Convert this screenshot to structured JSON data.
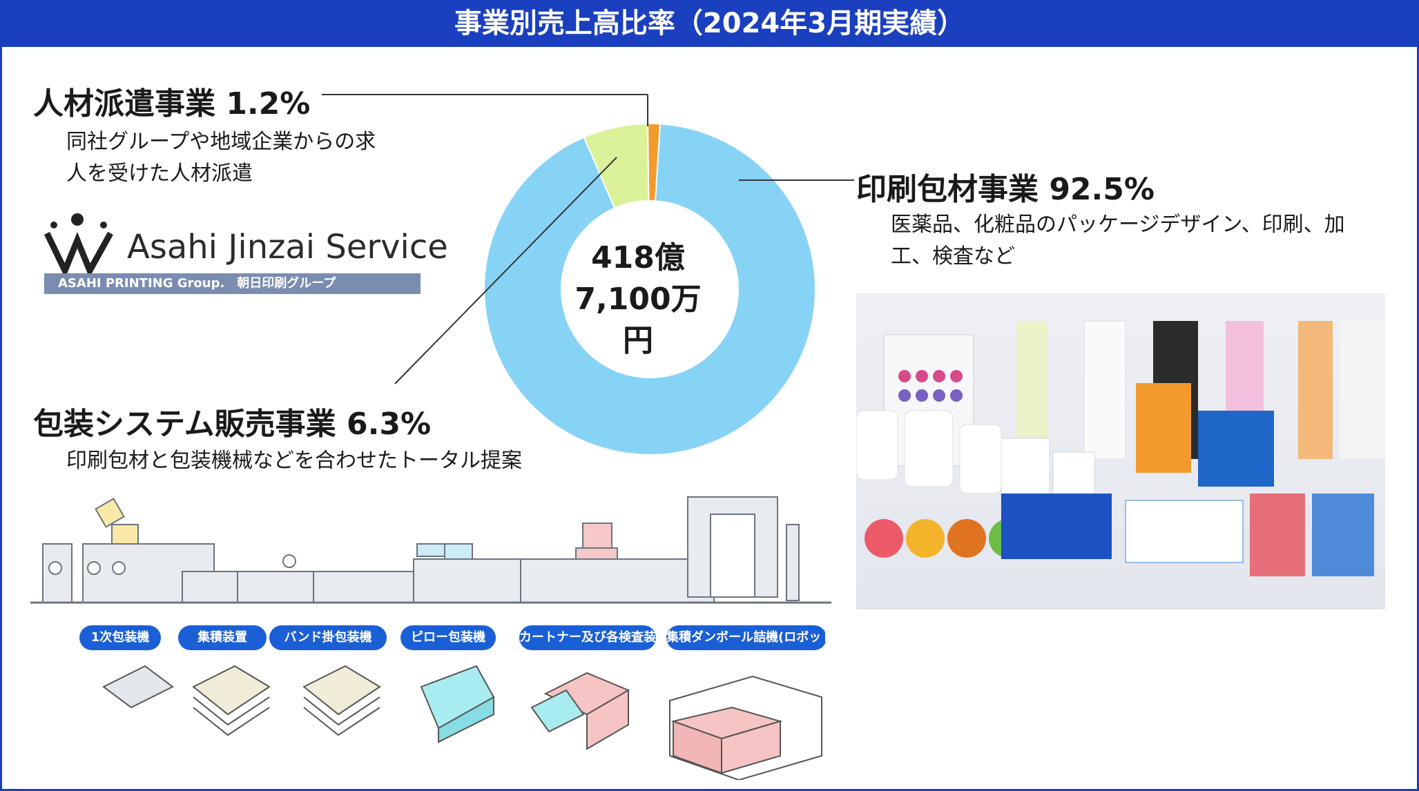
{
  "header": {
    "title": "事業別売上高比率（2024年3月期実績）"
  },
  "chart_data": {
    "type": "pie",
    "donut": true,
    "center_label": [
      "418億",
      "7,100万円"
    ],
    "slices": [
      {
        "name": "印刷包材事業",
        "value": 92.5,
        "color": "#87d3f6"
      },
      {
        "name": "包装システム販売事業",
        "value": 6.3,
        "color": "#d9f29a"
      },
      {
        "name": "人材派遣事業",
        "value": 1.2,
        "color": "#f39a2d"
      }
    ],
    "order_from_top": [
      "人材派遣事業",
      "印刷包材事業",
      "包装システム販売事業"
    ]
  },
  "segments": {
    "staffing": {
      "title": "人材派遣事業 1.2%",
      "desc_lines": [
        "同社グループや地域企業からの求",
        "人を受けた人材派遣"
      ]
    },
    "packaging": {
      "title": "印刷包材事業 92.5%",
      "desc_lines": [
        "医薬品、化粧品のパッケージデザイン、印刷、加",
        "工、検査など"
      ]
    },
    "systems": {
      "title": "包装システム販売事業 6.3%",
      "desc_lines": [
        "印刷包材と包装機械などを合わせたトータル提案"
      ]
    }
  },
  "logo": {
    "name": "Asahi Jinzai Service",
    "band": "ASAHI PRINTING Group.　朝日印刷グループ"
  },
  "machines": [
    "1次包装機",
    "集積装置",
    "バンド掛包装機",
    "ピロー包装機",
    "カートナー及び各検査装置",
    "集積ダンボール詰機(ロボット)"
  ],
  "colors": {
    "header": "#1a3fbf",
    "pill": "#1a5fd6",
    "main_slice": "#87d3f6",
    "systems_slice": "#d9f29a",
    "staffing_slice": "#f39a2d"
  },
  "icons": [
    "logo-w-icon",
    "machine-line-illustration",
    "product-photo",
    "package-illustrations"
  ]
}
